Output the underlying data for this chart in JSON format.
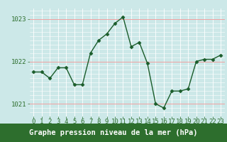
{
  "x": [
    0,
    1,
    2,
    3,
    4,
    5,
    6,
    7,
    8,
    9,
    10,
    11,
    12,
    13,
    14,
    15,
    16,
    17,
    18,
    19,
    20,
    21,
    22,
    23
  ],
  "y": [
    1021.75,
    1021.75,
    1021.6,
    1021.85,
    1021.85,
    1021.45,
    1021.45,
    1022.2,
    1022.5,
    1022.65,
    1022.9,
    1023.05,
    1022.35,
    1022.45,
    1021.95,
    1021.0,
    1020.9,
    1021.3,
    1021.3,
    1021.35,
    1022.0,
    1022.05,
    1022.05,
    1022.15
  ],
  "line_color": "#1a5c2a",
  "marker": "D",
  "marker_size": 2.5,
  "linewidth": 1.0,
  "bg_color": "#cce8e8",
  "grid_white": "#ffffff",
  "grid_red": "#f0a0a0",
  "xlabel": "Graphe pression niveau de la mer (hPa)",
  "xlabel_bg": "#2d6e2d",
  "xlabel_color": "#ffffff",
  "ylim": [
    1020.7,
    1023.25
  ],
  "yticks": [
    1021,
    1022,
    1023
  ],
  "xticks": [
    0,
    1,
    2,
    3,
    4,
    5,
    6,
    7,
    8,
    9,
    10,
    11,
    12,
    13,
    14,
    15,
    16,
    17,
    18,
    19,
    20,
    21,
    22,
    23
  ],
  "tick_fontsize": 6.5,
  "xlabel_fontsize": 7.5
}
